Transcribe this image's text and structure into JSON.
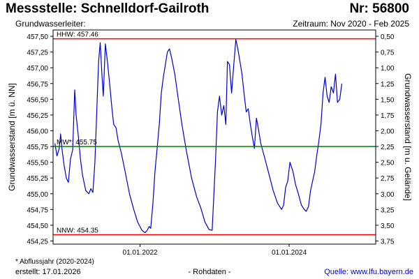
{
  "header": {
    "title": "Messstelle: Schnelldorf-Gailroth",
    "nr": "Nr: 56800",
    "aquifer_label": "Grundwasserleiter:",
    "period": "Zeitraum: Nov 2020 - Feb 2025"
  },
  "footer": {
    "footnote": "* Abflussjahr (2020-2024)",
    "created": "erstellt:  17.01.2026",
    "rawdata": "- Rohdaten -",
    "source": "Quelle:  www.lfu.bayern.de"
  },
  "colors": {
    "series": "#0000cc",
    "hhw": "#ff0000",
    "nnw": "#ff0000",
    "mw": "#008000",
    "axis": "#000000"
  },
  "chart_data": {
    "type": "line",
    "ylabel": "Grundwasserstand [m ü. NN]",
    "ylabel_right": "Grundwasserstand [m u. Gelände]",
    "ylim": [
      454.2,
      457.6
    ],
    "xlim": [
      "2020-11-01",
      "2025-02-28"
    ],
    "yticks": [
      "454,25",
      "454,50",
      "454,75",
      "455,00",
      "455,25",
      "455,50",
      "455,75",
      "456,00",
      "456,25",
      "456,50",
      "456,75",
      "457,00",
      "457,25",
      "457,50"
    ],
    "yticks_right": [
      "3,75",
      "3,50",
      "3,25",
      "3,00",
      "2,75",
      "2,50",
      "2,25",
      "2,00",
      "1,75",
      "1,50",
      "1,25",
      "1,00",
      "0,75",
      "0,50"
    ],
    "xticks": [
      {
        "date": "2022-01-01",
        "label": "01.01.2022"
      },
      {
        "date": "2024-01-01",
        "label": "01.01.2024"
      }
    ],
    "reference_lines": [
      {
        "name": "HHW",
        "label": "HHW: 457.46",
        "value": 457.46,
        "color": "#ff0000"
      },
      {
        "name": "MW",
        "label": "MW*: 455.75",
        "value": 455.75,
        "color": "#008000"
      },
      {
        "name": "NNW",
        "label": "NNW: 454.35",
        "value": 454.35,
        "color": "#ff0000"
      }
    ],
    "grid": false,
    "series": [
      {
        "color": "#0000cc",
        "points": [
          [
            "2020-11-10",
            455.8
          ],
          [
            "2020-11-20",
            455.6
          ],
          [
            "2020-12-01",
            455.72
          ],
          [
            "2020-12-08",
            455.95
          ],
          [
            "2020-12-15",
            455.7
          ],
          [
            "2020-12-25",
            455.45
          ],
          [
            "2021-01-05",
            455.25
          ],
          [
            "2021-01-15",
            455.18
          ],
          [
            "2021-01-25",
            455.55
          ],
          [
            "2021-02-05",
            455.7
          ],
          [
            "2021-02-15",
            456.65
          ],
          [
            "2021-02-22",
            456.25
          ],
          [
            "2021-03-05",
            455.9
          ],
          [
            "2021-03-15",
            455.55
          ],
          [
            "2021-03-25",
            455.3
          ],
          [
            "2021-04-10",
            455.05
          ],
          [
            "2021-04-25",
            455.0
          ],
          [
            "2021-05-05",
            455.08
          ],
          [
            "2021-05-15",
            455.02
          ],
          [
            "2021-05-25",
            455.5
          ],
          [
            "2021-06-05",
            456.5
          ],
          [
            "2021-06-12",
            457.1
          ],
          [
            "2021-06-20",
            457.4
          ],
          [
            "2021-06-28",
            456.9
          ],
          [
            "2021-07-05",
            456.55
          ],
          [
            "2021-07-15",
            457.38
          ],
          [
            "2021-07-25",
            457.1
          ],
          [
            "2021-08-05",
            456.75
          ],
          [
            "2021-08-15",
            456.4
          ],
          [
            "2021-08-25",
            456.1
          ],
          [
            "2021-09-05",
            456.05
          ],
          [
            "2021-09-15",
            455.85
          ],
          [
            "2021-10-01",
            455.65
          ],
          [
            "2021-10-20",
            455.35
          ],
          [
            "2021-11-10",
            455.0
          ],
          [
            "2021-12-01",
            454.75
          ],
          [
            "2021-12-20",
            454.55
          ],
          [
            "2022-01-10",
            454.42
          ],
          [
            "2022-01-25",
            454.38
          ],
          [
            "2022-02-05",
            454.42
          ],
          [
            "2022-02-15",
            454.48
          ],
          [
            "2022-02-22",
            454.45
          ],
          [
            "2022-03-05",
            454.85
          ],
          [
            "2022-03-15",
            455.35
          ],
          [
            "2022-03-25",
            455.7
          ],
          [
            "2022-04-05",
            456.1
          ],
          [
            "2022-04-15",
            456.6
          ],
          [
            "2022-04-25",
            456.85
          ],
          [
            "2022-05-05",
            457.05
          ],
          [
            "2022-05-15",
            457.25
          ],
          [
            "2022-05-25",
            457.3
          ],
          [
            "2022-06-05",
            457.15
          ],
          [
            "2022-06-20",
            456.9
          ],
          [
            "2022-07-05",
            456.55
          ],
          [
            "2022-07-25",
            456.1
          ],
          [
            "2022-08-15",
            455.7
          ],
          [
            "2022-09-10",
            455.25
          ],
          [
            "2022-10-05",
            454.95
          ],
          [
            "2022-10-25",
            454.78
          ],
          [
            "2022-11-15",
            454.55
          ],
          [
            "2022-12-05",
            454.43
          ],
          [
            "2022-12-20",
            454.42
          ],
          [
            "2023-01-05",
            455.5
          ],
          [
            "2023-01-15",
            456.3
          ],
          [
            "2023-01-25",
            456.55
          ],
          [
            "2023-02-05",
            456.25
          ],
          [
            "2023-02-15",
            456.4
          ],
          [
            "2023-02-25",
            456.1
          ],
          [
            "2023-03-05",
            457.1
          ],
          [
            "2023-03-15",
            457.05
          ],
          [
            "2023-03-25",
            456.6
          ],
          [
            "2023-04-05",
            457.05
          ],
          [
            "2023-04-15",
            457.45
          ],
          [
            "2023-04-25",
            457.3
          ],
          [
            "2023-05-05",
            457.1
          ],
          [
            "2023-05-15",
            456.9
          ],
          [
            "2023-05-25",
            456.6
          ],
          [
            "2023-06-05",
            456.3
          ],
          [
            "2023-06-15",
            456.35
          ],
          [
            "2023-06-25",
            456.1
          ],
          [
            "2023-07-05",
            455.9
          ],
          [
            "2023-07-15",
            455.72
          ],
          [
            "2023-07-25",
            456.2
          ],
          [
            "2023-08-05",
            456.0
          ],
          [
            "2023-08-15",
            455.8
          ],
          [
            "2023-09-05",
            455.55
          ],
          [
            "2023-09-25",
            455.3
          ],
          [
            "2023-10-15",
            455.05
          ],
          [
            "2023-11-05",
            454.85
          ],
          [
            "2023-11-25",
            454.75
          ],
          [
            "2023-12-05",
            454.82
          ],
          [
            "2023-12-15",
            455.1
          ],
          [
            "2023-12-25",
            455.2
          ],
          [
            "2024-01-05",
            455.5
          ],
          [
            "2024-01-20",
            455.35
          ],
          [
            "2024-02-01",
            455.15
          ],
          [
            "2024-02-15",
            455.0
          ],
          [
            "2024-03-01",
            454.82
          ],
          [
            "2024-03-15",
            454.75
          ],
          [
            "2024-03-25",
            454.72
          ],
          [
            "2024-04-05",
            454.8
          ],
          [
            "2024-04-15",
            455.05
          ],
          [
            "2024-04-25",
            455.2
          ],
          [
            "2024-05-05",
            455.35
          ],
          [
            "2024-05-15",
            455.6
          ],
          [
            "2024-05-25",
            455.82
          ],
          [
            "2024-06-05",
            456.1
          ],
          [
            "2024-06-15",
            456.6
          ],
          [
            "2024-06-25",
            456.85
          ],
          [
            "2024-07-05",
            456.55
          ],
          [
            "2024-07-15",
            456.45
          ],
          [
            "2024-07-25",
            456.7
          ],
          [
            "2024-08-05",
            456.6
          ],
          [
            "2024-08-15",
            456.9
          ],
          [
            "2024-08-25",
            456.45
          ],
          [
            "2024-09-05",
            456.5
          ],
          [
            "2024-09-15",
            456.75
          ]
        ]
      }
    ]
  }
}
